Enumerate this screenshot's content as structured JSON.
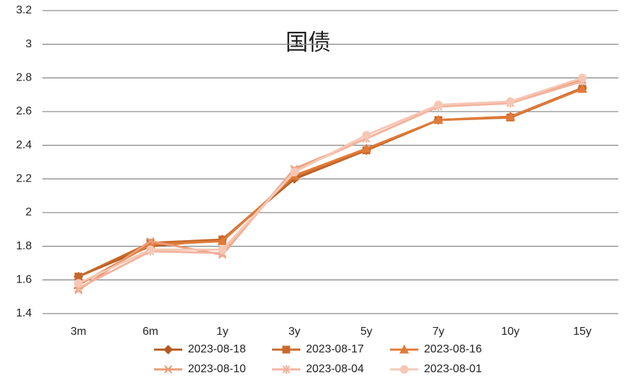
{
  "chart_data": {
    "type": "line",
    "title": "国债",
    "categories": [
      "3m",
      "6m",
      "1y",
      "3y",
      "5y",
      "7y",
      "10y",
      "15y"
    ],
    "ylim": [
      1.4,
      3.2
    ],
    "yticks": [
      1.4,
      1.6,
      1.8,
      2,
      2.2,
      2.4,
      2.6,
      2.8,
      3,
      3.2
    ],
    "grid": true,
    "series": [
      {
        "name": "2023-08-18",
        "color": "#b35a22",
        "marker": "diamond",
        "values": [
          1.62,
          1.8,
          1.84,
          2.2,
          2.37,
          2.55,
          2.57,
          2.74
        ]
      },
      {
        "name": "2023-08-17",
        "color": "#c8692a",
        "marker": "square",
        "values": [
          1.62,
          1.82,
          1.84,
          2.21,
          2.37,
          2.55,
          2.565,
          2.735
        ]
      },
      {
        "name": "2023-08-16",
        "color": "#e07b39",
        "marker": "triangle",
        "values": [
          1.57,
          1.81,
          1.83,
          2.22,
          2.38,
          2.55,
          2.57,
          2.735
        ]
      },
      {
        "name": "2023-08-10",
        "color": "#eb9a75",
        "marker": "x",
        "values": [
          1.54,
          1.83,
          1.75,
          2.26,
          2.44,
          2.63,
          2.65,
          2.79
        ]
      },
      {
        "name": "2023-08-04",
        "color": "#f2b49e",
        "marker": "star",
        "values": [
          1.55,
          1.77,
          1.76,
          2.25,
          2.44,
          2.63,
          2.65,
          2.78
        ]
      },
      {
        "name": "2023-08-01",
        "color": "#f6c7b5",
        "marker": "circle",
        "values": [
          1.58,
          1.78,
          1.78,
          2.24,
          2.46,
          2.64,
          2.66,
          2.8
        ]
      }
    ]
  }
}
